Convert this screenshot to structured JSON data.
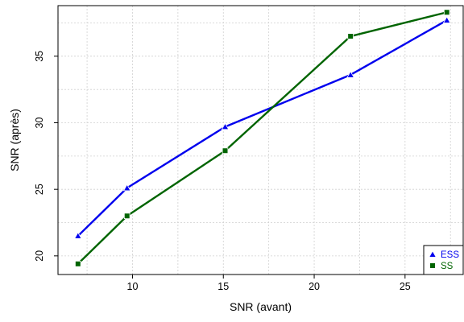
{
  "chart_data": {
    "type": "line",
    "title": "",
    "xlabel": "SNR (avant)",
    "ylabel": "SNR (après)",
    "xlim": [
      5.9,
      28.2
    ],
    "ylim": [
      18.6,
      38.8
    ],
    "xticks": [
      10,
      15,
      20,
      25
    ],
    "yticks": [
      20,
      25,
      30,
      35
    ],
    "grid": true,
    "legend_position": "bottom-right",
    "series": [
      {
        "name": "ESS",
        "color": "#0000ee",
        "marker": "triangle",
        "x": [
          7,
          9.7,
          15.1,
          22,
          27.3
        ],
        "y": [
          21.5,
          25.1,
          29.7,
          33.6,
          37.7
        ]
      },
      {
        "name": "SS",
        "color": "#006400",
        "marker": "square",
        "x": [
          7,
          9.7,
          15.1,
          22,
          27.3
        ],
        "y": [
          19.4,
          23.0,
          27.9,
          36.5,
          38.3
        ]
      }
    ]
  }
}
